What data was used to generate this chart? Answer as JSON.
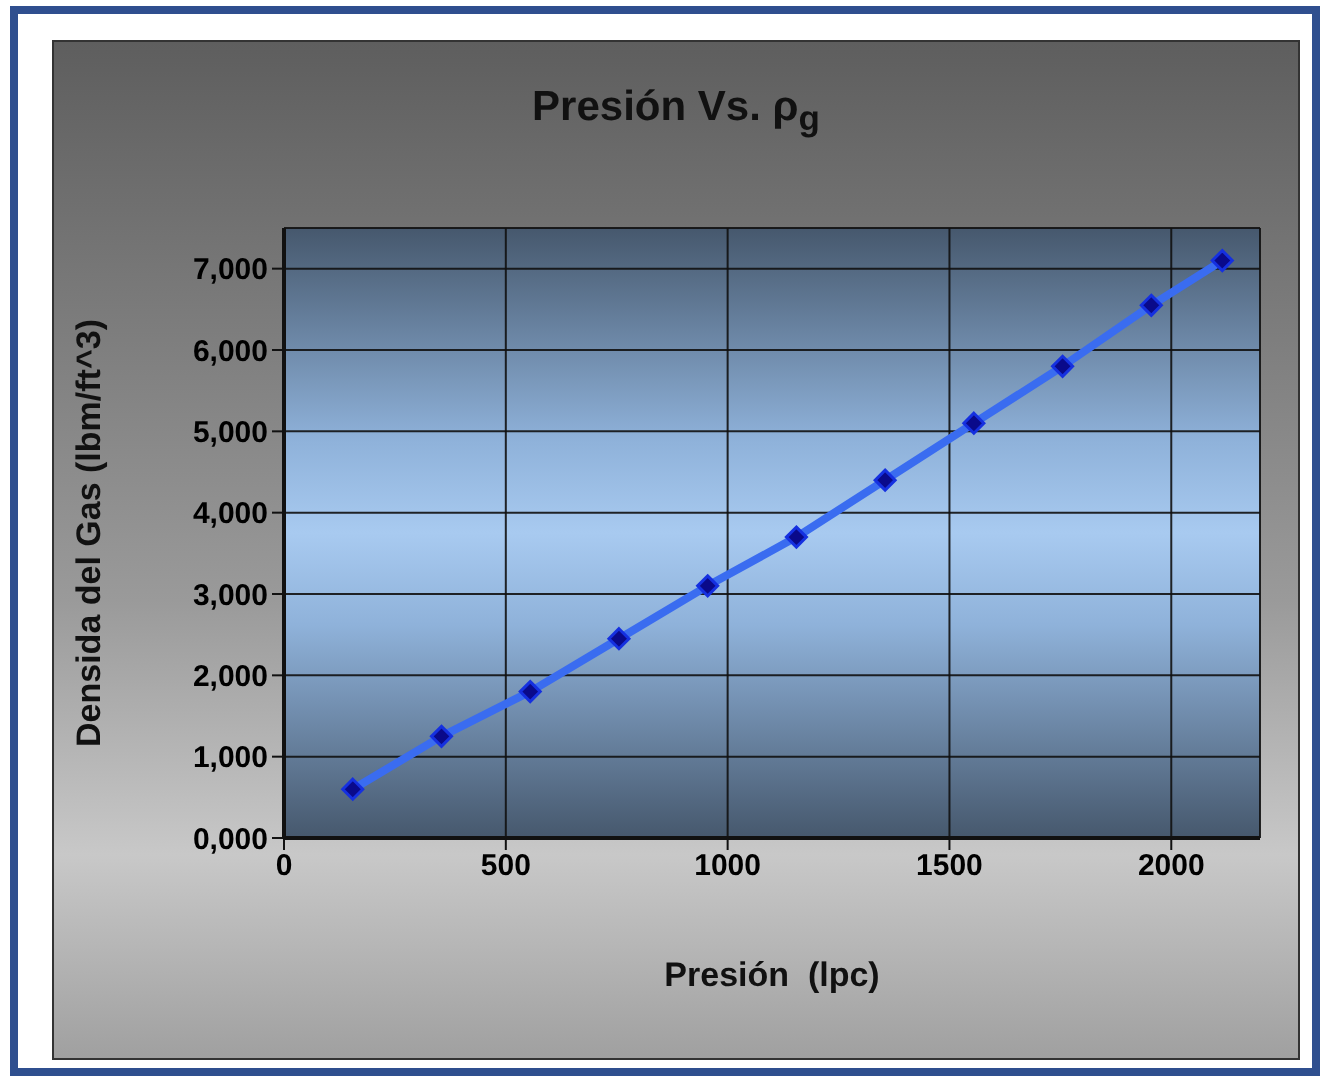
{
  "chart_data": {
    "type": "line",
    "title": "Presión Vs. ρ$_{g}$",
    "xlabel": "Presión  (lpc)",
    "ylabel": "Densida del Gas  (lbm/ft^3)",
    "x": [
      155,
      355,
      555,
      755,
      955,
      1155,
      1355,
      1555,
      1755,
      1955,
      2115
    ],
    "series": [
      {
        "color": "#3a6cf0",
        "values": [
          600,
          1250,
          1800,
          2450,
          3100,
          3700,
          4400,
          5100,
          5800,
          6550,
          7100
        ]
      }
    ],
    "xlim": [
      0,
      2200
    ],
    "xticks": [
      0,
      500,
      1000,
      1500,
      2000
    ],
    "ylim": [
      0,
      7500
    ],
    "yticks": [
      {
        "value": 0,
        "label": "0,000"
      },
      {
        "value": 1000,
        "label": "1,000"
      },
      {
        "value": 2000,
        "label": "2,000"
      },
      {
        "value": 3000,
        "label": "3,000"
      },
      {
        "value": 4000,
        "label": "4,000"
      },
      {
        "value": 5000,
        "label": "5,000"
      },
      {
        "value": 6000,
        "label": "6,000"
      },
      {
        "value": 7000,
        "label": "7,000"
      }
    ],
    "grid": true,
    "marker": "diamond",
    "line_style": "solid"
  }
}
